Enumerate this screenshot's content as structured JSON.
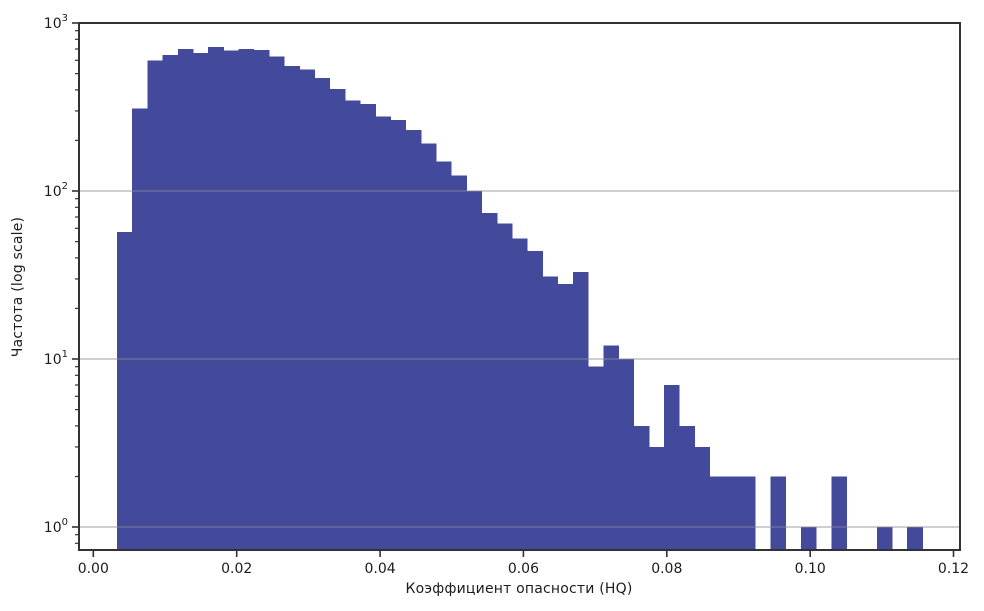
{
  "figure": {
    "background": "#ffffff"
  },
  "chart_data": {
    "type": "bar",
    "subtype": "histogram",
    "title": "",
    "xlabel": "Коэффициент опасности (HQ)",
    "ylabel": "Частота (log scale)",
    "yscale": "log",
    "grid": "horizontal-major",
    "legend": "none",
    "bar_color": "#434A9B",
    "grid_color": "#8b8b93",
    "axis_color": "#323236",
    "text_color": "#1c1c1e",
    "xlim": [
      -0.002,
      0.1209
    ],
    "ylim": [
      0.73,
      1000
    ],
    "bin_start": 0.0033,
    "bin_width": 0.00212,
    "counts": [
      57,
      310,
      600,
      645,
      700,
      665,
      720,
      688,
      700,
      690,
      630,
      555,
      530,
      470,
      405,
      345,
      330,
      278,
      265,
      231,
      192,
      150,
      124,
      100,
      74,
      64,
      52,
      44,
      31,
      28,
      33,
      9,
      12,
      10,
      4,
      3,
      7,
      4,
      3,
      2,
      2,
      2,
      0,
      2,
      0,
      1,
      0,
      2,
      0,
      0,
      1,
      0,
      1
    ],
    "x_ticks": [
      0.0,
      0.02,
      0.04,
      0.06,
      0.08,
      0.1,
      0.12
    ],
    "x_tick_labels": [
      "0.00",
      "0.02",
      "0.04",
      "0.06",
      "0.08",
      "0.10",
      "0.12"
    ],
    "y_tick_exponents": [
      0,
      1,
      2,
      3
    ],
    "y_tick_base": "10"
  }
}
